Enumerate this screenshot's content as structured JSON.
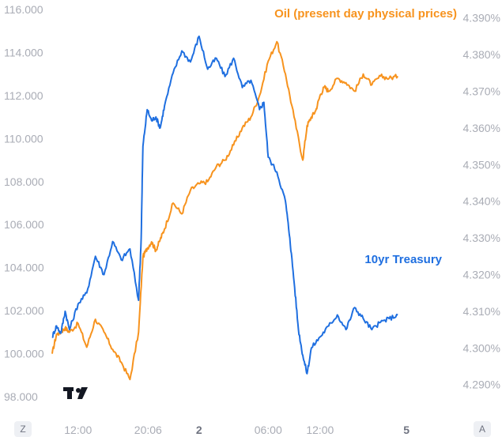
{
  "chart_data": {
    "type": "line",
    "title": "",
    "x": {
      "tick_labels": [
        {
          "label": "12:00",
          "t": 3,
          "bold": false
        },
        {
          "label": "20:06",
          "t": 11.1,
          "bold": false
        },
        {
          "label": "2",
          "t": 17,
          "bold": true
        },
        {
          "label": "06:00",
          "t": 25,
          "bold": false
        },
        {
          "label": "12:00",
          "t": 31,
          "bold": false
        },
        {
          "label": "5",
          "t": 41,
          "bold": true
        }
      ],
      "range": [
        0,
        43
      ]
    },
    "left_axis": {
      "name": "Oil (present day physical prices)",
      "ylim": [
        98,
        116
      ],
      "ticks": [
        "98.000",
        "100.000",
        "102.000",
        "104.000",
        "106.000",
        "108.000",
        "110.000",
        "112.000",
        "114.000",
        "116.000"
      ],
      "tick_values": [
        98,
        100,
        102,
        104,
        106,
        108,
        110,
        112,
        114,
        116
      ]
    },
    "right_axis": {
      "name": "10yr Treasury",
      "ylim": [
        4.2867,
        4.3923
      ],
      "ticks": [
        "4.290%",
        "4.300%",
        "4.310%",
        "4.320%",
        "4.330%",
        "4.340%",
        "4.350%",
        "4.360%",
        "4.370%",
        "4.380%",
        "4.390%"
      ],
      "tick_values": [
        4.29,
        4.3,
        4.31,
        4.32,
        4.33,
        4.34,
        4.35,
        4.36,
        4.37,
        4.38,
        4.39
      ]
    },
    "series": [
      {
        "name": "Oil (present day physical prices)",
        "axis": "left",
        "color": "#f7931e",
        "t": [
          0,
          0.5,
          1,
          1.5,
          2,
          3,
          4,
          5,
          6,
          7,
          8,
          9,
          10,
          10.5,
          11,
          11.5,
          12,
          12.5,
          13,
          14,
          15,
          16,
          17,
          18,
          19,
          20,
          21,
          22,
          23,
          24,
          25,
          26,
          27,
          28,
          29,
          29.5,
          30,
          30.5,
          31,
          31.5,
          32,
          33,
          34,
          35,
          36,
          37,
          38,
          39,
          40
        ],
        "values": [
          100.0,
          100.9,
          101.0,
          101.2,
          101.0,
          101.4,
          100.3,
          101.6,
          101.0,
          100.2,
          99.6,
          98.8,
          101.0,
          104.5,
          104.9,
          105.2,
          104.8,
          105.3,
          105.8,
          107.0,
          106.5,
          107.6,
          107.9,
          108.0,
          108.7,
          109.0,
          109.7,
          110.5,
          111.0,
          112.0,
          113.6,
          114.5,
          113.0,
          111.0,
          109.0,
          110.6,
          111.0,
          111.3,
          112.0,
          112.4,
          112.2,
          112.8,
          112.6,
          112.2,
          113.0,
          112.5,
          112.9,
          112.8,
          112.9
        ]
      },
      {
        "name": "10yr Treasury",
        "axis": "right",
        "color": "#1f6fe0",
        "t": [
          0,
          0.5,
          1,
          1.5,
          2,
          3,
          4,
          5,
          6,
          7,
          8,
          9,
          10,
          10.3,
          10.5,
          11,
          11.5,
          12,
          12.5,
          13,
          14,
          15,
          16,
          17,
          18,
          19,
          20,
          21,
          22,
          23,
          24,
          24.5,
          25,
          26,
          27,
          27.5,
          28,
          28.5,
          29,
          29.5,
          30,
          31,
          32,
          33,
          34,
          35,
          36,
          37,
          38,
          39,
          40
        ],
        "values": [
          4.303,
          4.306,
          4.304,
          4.31,
          4.305,
          4.312,
          4.315,
          4.325,
          4.32,
          4.329,
          4.324,
          4.327,
          4.313,
          4.33,
          4.355,
          4.365,
          4.362,
          4.363,
          4.36,
          4.366,
          4.375,
          4.381,
          4.378,
          4.385,
          4.376,
          4.379,
          4.374,
          4.379,
          4.371,
          4.373,
          4.365,
          4.367,
          4.352,
          4.348,
          4.34,
          4.33,
          4.318,
          4.305,
          4.298,
          4.293,
          4.3,
          4.303,
          4.306,
          4.309,
          4.305,
          4.311,
          4.308,
          4.305,
          4.307,
          4.308,
          4.309
        ]
      }
    ],
    "legend_position": "inline"
  },
  "ui": {
    "logo_text": "TV",
    "zoom_button": "Z",
    "auto_button": "A"
  },
  "colors": {
    "oil": "#f7931e",
    "treasury": "#1f6fe0",
    "axis_text": "#a9acb5"
  }
}
